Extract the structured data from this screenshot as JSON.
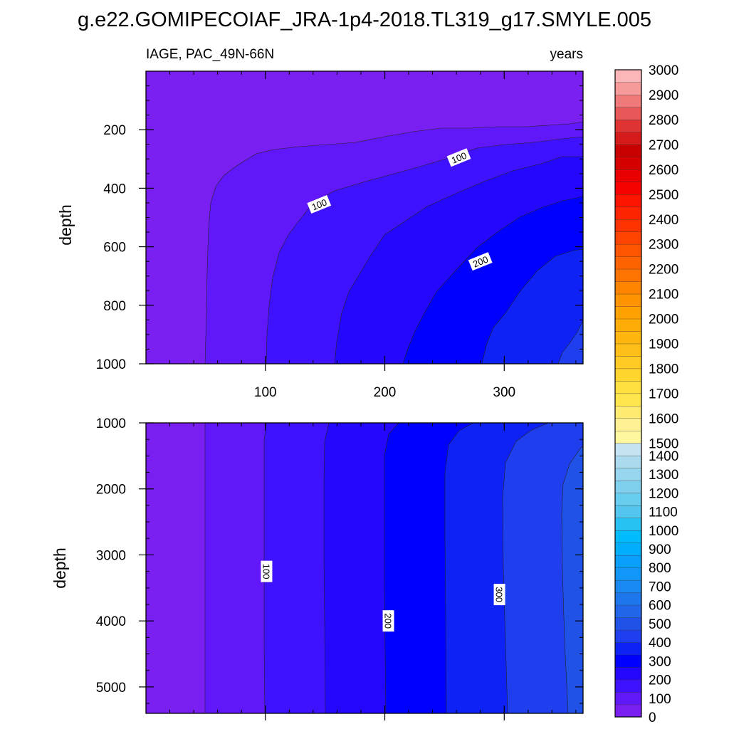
{
  "chart_data": [
    {
      "type": "contour",
      "title": "g.e22.GOMIPECOIAF_JRA-1p4-2018.TL319_g17.SMYLE.005",
      "left_label": "IAGE, PAC_49N-66N",
      "right_label": "years",
      "xlabel": "",
      "ylabel": "depth",
      "xlim": [
        0,
        366
      ],
      "ylim": [
        1000,
        0
      ],
      "x_ticks": [
        100,
        200,
        300
      ],
      "x_tick_labels": [
        "100",
        "200",
        "300"
      ],
      "y_ticks": [
        200,
        400,
        600,
        800,
        1000
      ],
      "y_tick_labels": [
        "200",
        "400",
        "600",
        "800",
        "1000"
      ],
      "contour_interval": 50,
      "contour_labels": [
        {
          "text": "100",
          "x": 145,
          "depth": 455
        },
        {
          "text": "100",
          "x": 262,
          "depth": 295
        },
        {
          "text": "200",
          "x": 280,
          "depth": 650
        }
      ]
    },
    {
      "type": "contour",
      "xlabel": "",
      "ylabel": "depth",
      "xlim": [
        0,
        366
      ],
      "ylim": [
        5400,
        1000
      ],
      "x_ticks": [
        100,
        200,
        300
      ],
      "y_ticks": [
        1000,
        2000,
        3000,
        4000,
        5000
      ],
      "y_tick_labels": [
        "1000",
        "2000",
        "3000",
        "4000",
        "5000"
      ],
      "contour_interval": 50,
      "contour_labels": [
        {
          "text": "100",
          "x": 101,
          "depth": 3250
        },
        {
          "text": "200",
          "x": 203,
          "depth": 4000
        },
        {
          "text": "300",
          "x": 296,
          "depth": 3600
        }
      ]
    }
  ],
  "colorbar": {
    "labels": [
      "0",
      "100",
      "200",
      "300",
      "400",
      "500",
      "600",
      "700",
      "800",
      "900",
      "1000",
      "1100",
      "1200",
      "1300",
      "1400",
      "1500",
      "1600",
      "1700",
      "1800",
      "1900",
      "2000",
      "2100",
      "2200",
      "2300",
      "2400",
      "2500",
      "2600",
      "2700",
      "2800",
      "2900",
      "3000"
    ],
    "colors": [
      "#7a1ff2",
      "#6017fa",
      "#3f12ff",
      "#2407ff",
      "#0000ff",
      "#0f22f6",
      "#1f3fef",
      "#2152e8",
      "#2266ea",
      "#1e76ed",
      "#1988f0",
      "#1296f7",
      "#0a9ffb",
      "#00aefd",
      "#00bcff",
      "#27c2f2",
      "#52c6ef",
      "#69cdef",
      "#80d0ed",
      "#98d5ef",
      "#acdbf0",
      "#c6e3f3",
      "#fff6a0",
      "#fff194",
      "#ffea72",
      "#ffe64e",
      "#ffe040",
      "#ffd52e",
      "#ffcb24",
      "#ffbe18",
      "#ffb60e",
      "#ffad06",
      "#ffa200",
      "#ff9300",
      "#ff8400",
      "#ff7400",
      "#ff6300",
      "#ff5400",
      "#ff4400",
      "#ff3300",
      "#ff2400",
      "#ff1400",
      "#f70000",
      "#e80000",
      "#d50000",
      "#c80000",
      "#d41a1a",
      "#e03434",
      "#e95858",
      "#f07a7a",
      "#f69a9a",
      "#fbb7b7"
    ]
  }
}
